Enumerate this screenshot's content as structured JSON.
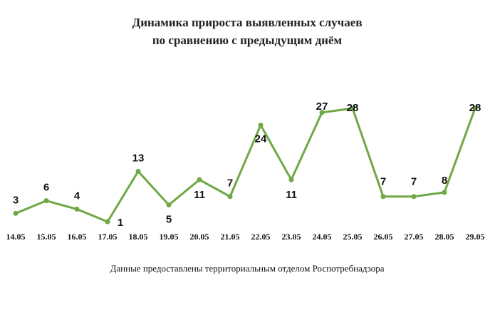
{
  "chart_data": {
    "type": "line",
    "title": [
      "Динамика прироста выявленных случаев",
      "по сравнению с предыдущим днём"
    ],
    "categories": [
      "14.05",
      "15.05",
      "16.05",
      "17.05",
      "18.05",
      "19.05",
      "20.05",
      "21.05",
      "22.05",
      "23.05",
      "24.05",
      "25.05",
      "26.05",
      "27.05",
      "28.05",
      "29.05"
    ],
    "values": [
      3,
      6,
      4,
      1,
      13,
      5,
      11,
      7,
      24,
      11,
      27,
      28,
      7,
      7,
      8,
      28
    ],
    "color": "#70a845",
    "footnote": "Данные предоставлены территориальным отделом Роспотребнадзора"
  }
}
